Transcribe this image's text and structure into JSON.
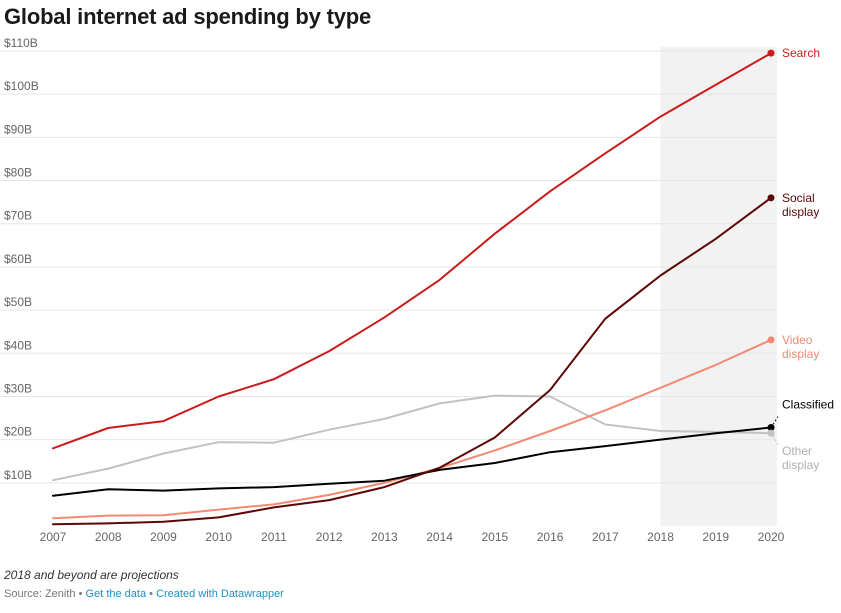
{
  "title": "Global internet ad spending by type",
  "notes": "2018 and beyond are projections",
  "footer": {
    "source": "Source: Zenith",
    "separator": "•",
    "data_link": "Get the data",
    "credit_link": "Created with Datawrapper"
  },
  "colors": {
    "search": "#cc1a1a",
    "social": "#5c0606",
    "video": "#f28a72",
    "classified": "#000000",
    "other": "#c2c2c2",
    "projection_band": "#f2f2f2",
    "grid": "#e6e6e6",
    "axis_text": "#666666"
  },
  "chart_data": {
    "type": "line",
    "title": "Global internet ad spending by type",
    "x": [
      2007,
      2008,
      2009,
      2010,
      2011,
      2012,
      2013,
      2014,
      2015,
      2016,
      2017,
      2018,
      2019,
      2020
    ],
    "x_tick_labels": [
      "2007",
      "2008",
      "2009",
      "2010",
      "2011",
      "2012",
      "2013",
      "2014",
      "2015",
      "2016",
      "2017",
      "2018",
      "2019",
      "2020"
    ],
    "ylim": [
      0,
      110
    ],
    "y_ticks": [
      10,
      20,
      30,
      40,
      50,
      60,
      70,
      80,
      90,
      100,
      110
    ],
    "y_tick_labels": [
      "$10B",
      "$20B",
      "$30B",
      "$40B",
      "$50B",
      "$60B",
      "$70B",
      "$80B",
      "$90B",
      "$100B",
      "$110B"
    ],
    "grid": true,
    "projection_range": [
      2018,
      2020
    ],
    "series": [
      {
        "name": "Search",
        "label_lines": [
          "Search"
        ],
        "color": "#cc1a1a",
        "values": [
          18,
          22.7,
          24.3,
          30,
          34,
          40.5,
          48.3,
          57,
          67.7,
          77.5,
          86.3,
          94.8,
          102.2,
          109.5
        ]
      },
      {
        "name": "Social display",
        "label_lines": [
          "Social",
          "display"
        ],
        "color": "#5c0606",
        "values": [
          0.4,
          0.6,
          1,
          2,
          4.3,
          6,
          9,
          13.5,
          20.5,
          31.5,
          48,
          58,
          66.5,
          76
        ]
      },
      {
        "name": "Video display",
        "label_lines": [
          "Video",
          "display"
        ],
        "color": "#f28a72",
        "values": [
          1.8,
          2.4,
          2.5,
          3.8,
          5,
          7.2,
          10,
          13.4,
          17.5,
          22,
          26.8,
          32,
          37.3,
          43.1
        ]
      },
      {
        "name": "Classified",
        "label_lines": [
          "Classified"
        ],
        "color": "#000000",
        "values": [
          7,
          8.5,
          8.2,
          8.7,
          9,
          9.8,
          10.5,
          13,
          14.6,
          17.1,
          18.5,
          20,
          21.5,
          22.8
        ]
      },
      {
        "name": "Other display",
        "label_lines": [
          "Other",
          "display"
        ],
        "color": "#c2c2c2",
        "values": [
          10.6,
          13.3,
          16.8,
          19.4,
          19.3,
          22.3,
          24.8,
          28.4,
          30.2,
          30,
          23.5,
          22,
          21.8,
          21.5
        ]
      }
    ]
  }
}
